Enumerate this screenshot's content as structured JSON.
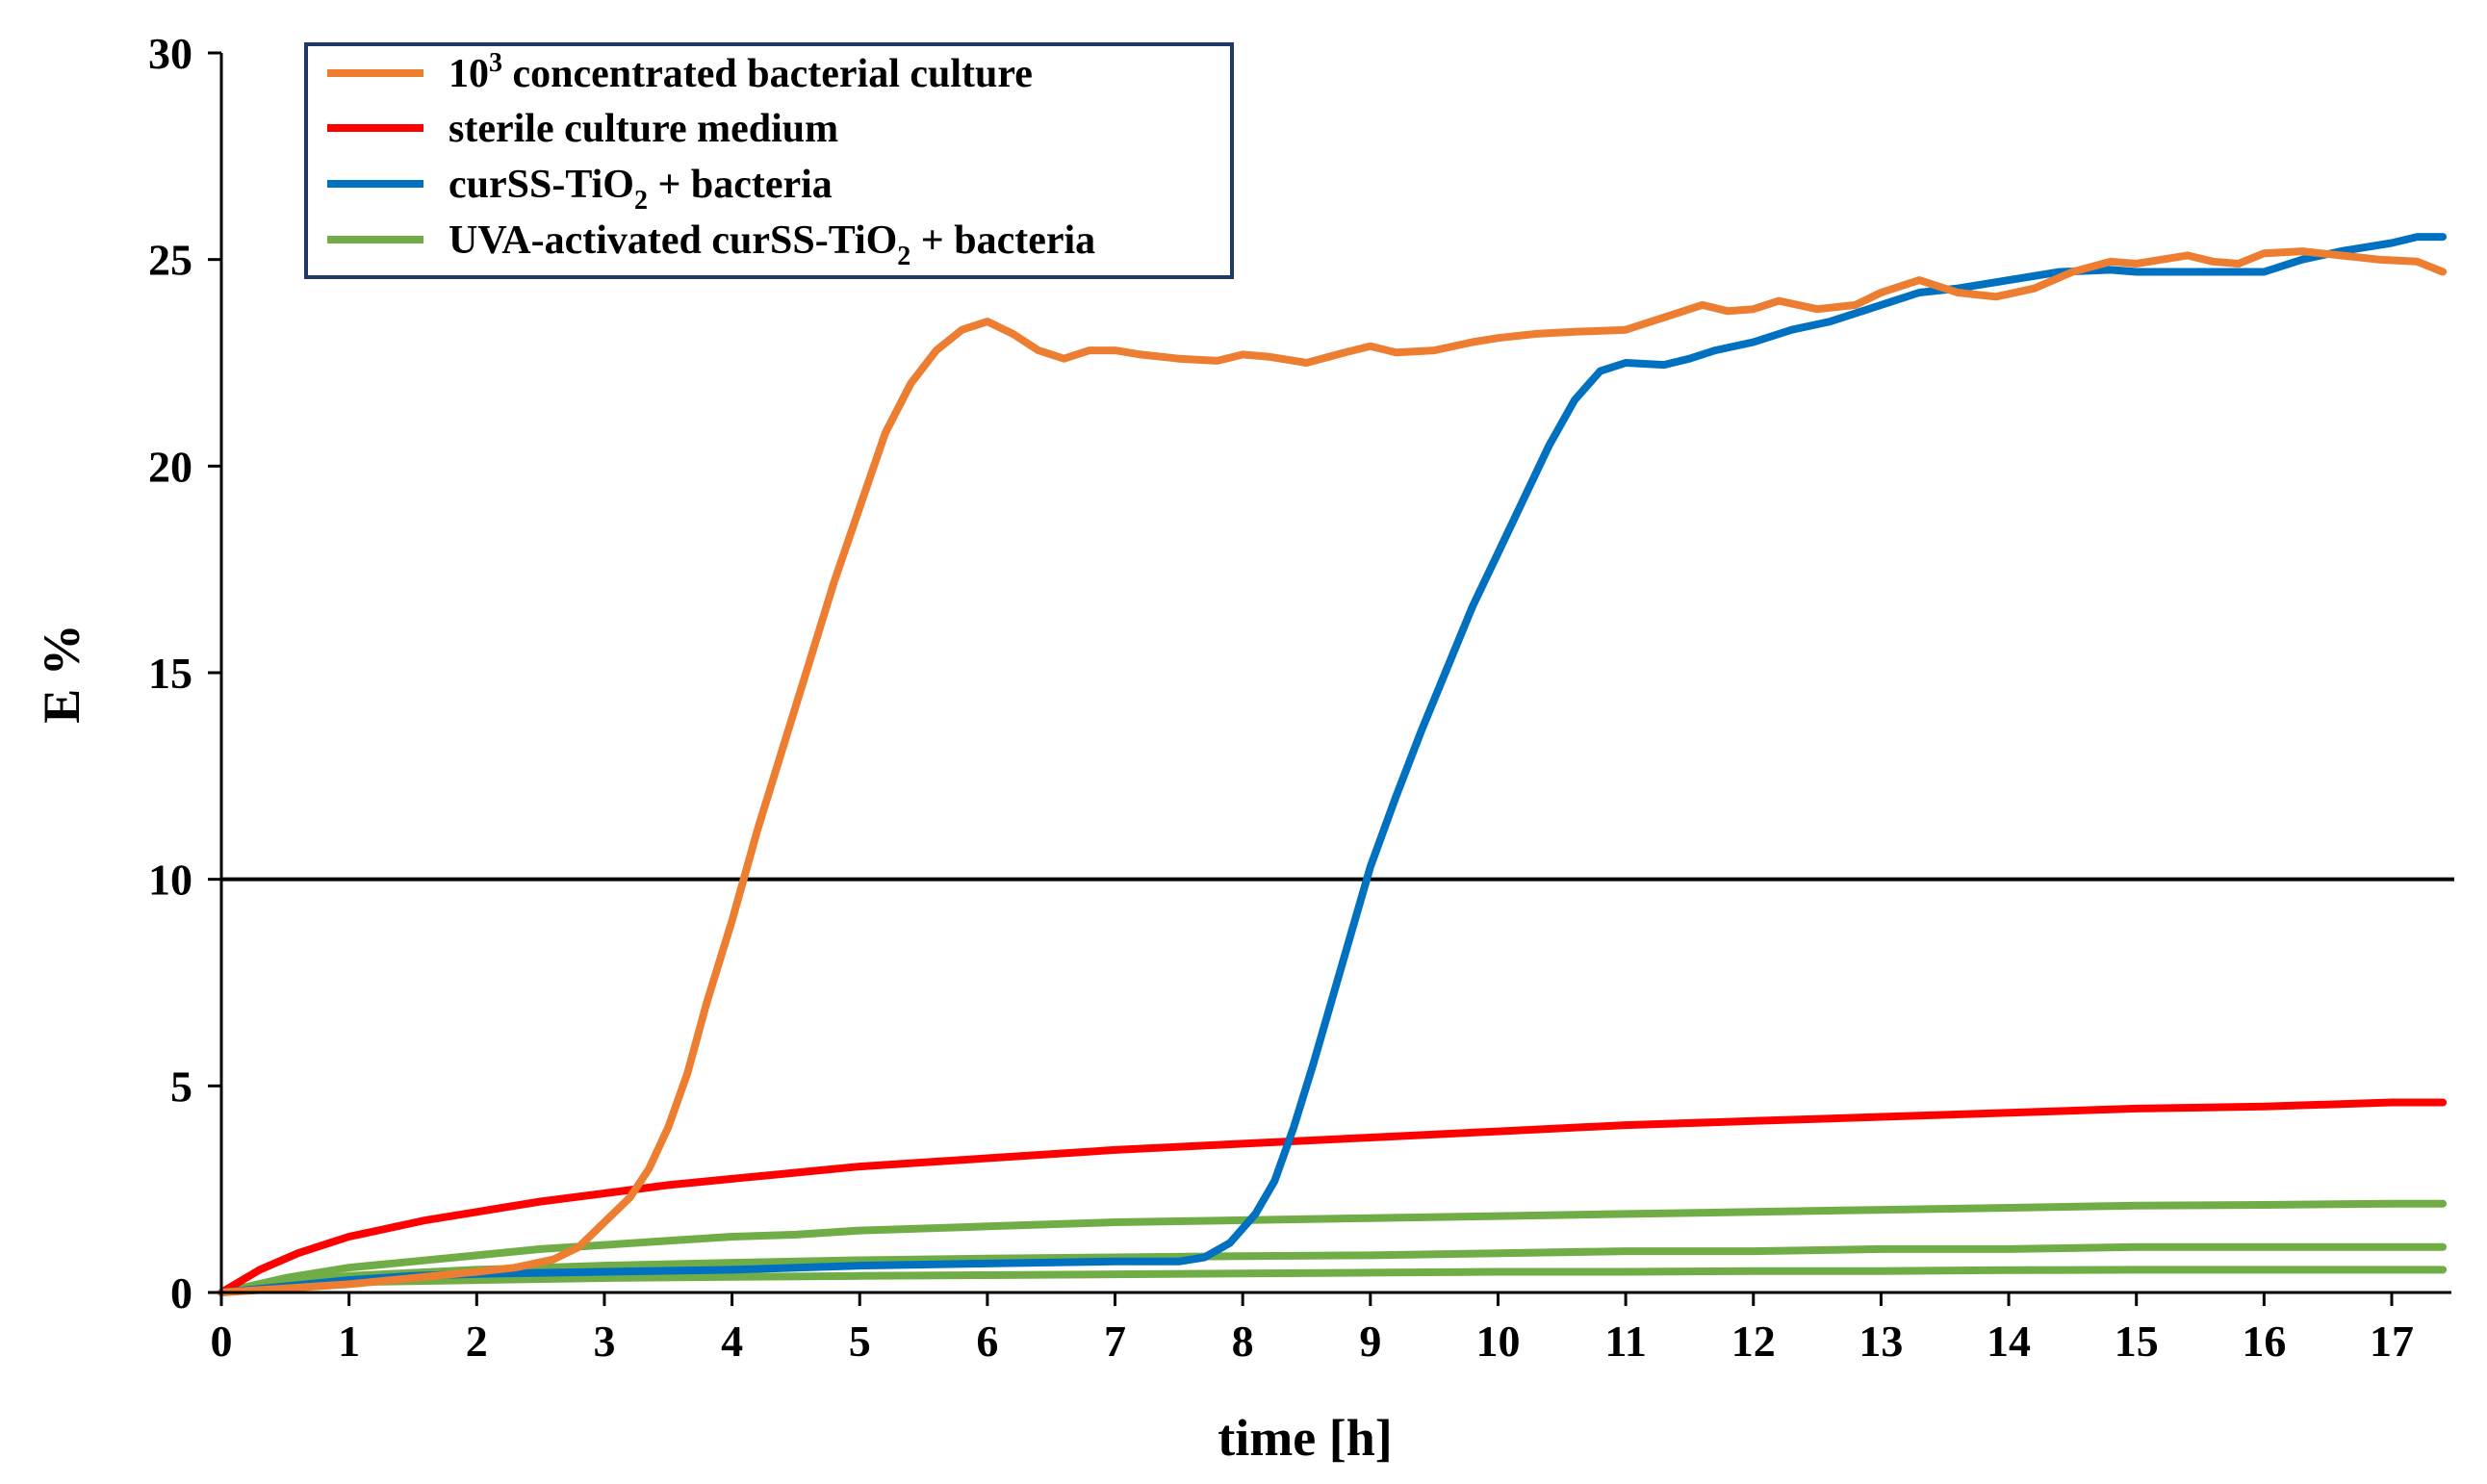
{
  "chart_data": {
    "type": "line",
    "title": "",
    "xlabel": "time [h]",
    "ylabel": "E %",
    "xlim": [
      0,
      17.5
    ],
    "ylim": [
      0,
      30
    ],
    "x_ticks": [
      "0",
      "1",
      "2",
      "3",
      "4",
      "5",
      "6",
      "7",
      "8",
      "9",
      "10",
      "11",
      "12",
      "13",
      "14",
      "15",
      "16",
      "17"
    ],
    "y_ticks": [
      "0",
      "5",
      "10",
      "15",
      "20",
      "25",
      "30"
    ],
    "threshold": {
      "y": 10,
      "color": "#000000"
    },
    "legend_position": "top-left",
    "legend": [
      {
        "series": "culture",
        "label": "10",
        "sup": "3",
        "label_rest": " concentrated bacterial culture"
      },
      {
        "series": "sterile",
        "label": "sterile culture medium"
      },
      {
        "series": "curss",
        "label": "curSS-TiO",
        "sub": "2",
        "label_rest": " + bacteria"
      },
      {
        "series": "uva",
        "label": "UVA-activated curSS-TiO",
        "sub": "2",
        "label_rest": " + bacteria"
      }
    ],
    "series": [
      {
        "id": "culture",
        "name": "10^3 concentrated bacterial culture",
        "color": "#ED7D31",
        "points": [
          [
            0,
            0
          ],
          [
            0.5,
            0.1
          ],
          [
            1,
            0.2
          ],
          [
            1.5,
            0.35
          ],
          [
            2,
            0.5
          ],
          [
            2.3,
            0.6
          ],
          [
            2.6,
            0.8
          ],
          [
            2.8,
            1.1
          ],
          [
            3,
            1.7
          ],
          [
            3.2,
            2.3
          ],
          [
            3.35,
            3
          ],
          [
            3.5,
            4
          ],
          [
            3.65,
            5.3
          ],
          [
            3.8,
            7
          ],
          [
            4,
            9
          ],
          [
            4.2,
            11.2
          ],
          [
            4.4,
            13.2
          ],
          [
            4.6,
            15.2
          ],
          [
            4.8,
            17.2
          ],
          [
            5,
            19
          ],
          [
            5.2,
            20.8
          ],
          [
            5.4,
            22
          ],
          [
            5.6,
            22.8
          ],
          [
            5.8,
            23.3
          ],
          [
            6,
            23.5
          ],
          [
            6.2,
            23.2
          ],
          [
            6.4,
            22.8
          ],
          [
            6.6,
            22.6
          ],
          [
            6.8,
            22.8
          ],
          [
            7,
            22.8
          ],
          [
            7.2,
            22.7
          ],
          [
            7.5,
            22.6
          ],
          [
            7.8,
            22.55
          ],
          [
            8,
            22.7
          ],
          [
            8.2,
            22.65
          ],
          [
            8.5,
            22.5
          ],
          [
            8.8,
            22.75
          ],
          [
            9,
            22.9
          ],
          [
            9.2,
            22.75
          ],
          [
            9.5,
            22.8
          ],
          [
            9.8,
            23
          ],
          [
            10,
            23.1
          ],
          [
            10.3,
            23.2
          ],
          [
            10.6,
            23.25
          ],
          [
            11,
            23.3
          ],
          [
            11.3,
            23.6
          ],
          [
            11.6,
            23.9
          ],
          [
            11.8,
            23.75
          ],
          [
            12,
            23.8
          ],
          [
            12.2,
            24
          ],
          [
            12.5,
            23.8
          ],
          [
            12.8,
            23.9
          ],
          [
            13,
            24.2
          ],
          [
            13.3,
            24.5
          ],
          [
            13.6,
            24.2
          ],
          [
            13.9,
            24.1
          ],
          [
            14.2,
            24.3
          ],
          [
            14.5,
            24.7
          ],
          [
            14.8,
            24.95
          ],
          [
            15,
            24.9
          ],
          [
            15.2,
            25
          ],
          [
            15.4,
            25.1
          ],
          [
            15.6,
            24.95
          ],
          [
            15.8,
            24.9
          ],
          [
            16,
            25.15
          ],
          [
            16.3,
            25.2
          ],
          [
            16.6,
            25.1
          ],
          [
            16.9,
            25
          ],
          [
            17.2,
            24.95
          ],
          [
            17.4,
            24.7
          ]
        ]
      },
      {
        "id": "sterile",
        "name": "sterile culture medium",
        "color": "#FF0000",
        "points": [
          [
            0,
            0
          ],
          [
            0.3,
            0.55
          ],
          [
            0.6,
            0.95
          ],
          [
            0.8,
            1.15
          ],
          [
            1,
            1.35
          ],
          [
            1.3,
            1.55
          ],
          [
            1.6,
            1.75
          ],
          [
            2,
            1.95
          ],
          [
            2.5,
            2.2
          ],
          [
            3,
            2.4
          ],
          [
            3.5,
            2.6
          ],
          [
            4,
            2.75
          ],
          [
            4.5,
            2.9
          ],
          [
            5,
            3.05
          ],
          [
            6,
            3.25
          ],
          [
            7,
            3.45
          ],
          [
            8,
            3.6
          ],
          [
            9,
            3.75
          ],
          [
            10,
            3.9
          ],
          [
            11,
            4.05
          ],
          [
            12,
            4.15
          ],
          [
            13,
            4.25
          ],
          [
            14,
            4.35
          ],
          [
            15,
            4.45
          ],
          [
            16,
            4.5
          ],
          [
            17,
            4.6
          ],
          [
            17.4,
            4.6
          ]
        ]
      },
      {
        "id": "curss",
        "name": "curSS-TiO2 + bacteria",
        "color": "#0070C0",
        "points": [
          [
            0,
            0
          ],
          [
            0.5,
            0.15
          ],
          [
            1,
            0.3
          ],
          [
            1.5,
            0.4
          ],
          [
            2,
            0.45
          ],
          [
            3,
            0.5
          ],
          [
            4,
            0.55
          ],
          [
            5,
            0.65
          ],
          [
            6,
            0.7
          ],
          [
            7,
            0.75
          ],
          [
            7.5,
            0.75
          ],
          [
            7.7,
            0.85
          ],
          [
            7.9,
            1.2
          ],
          [
            8.1,
            1.9
          ],
          [
            8.25,
            2.7
          ],
          [
            8.4,
            4
          ],
          [
            8.55,
            5.5
          ],
          [
            8.7,
            7.1
          ],
          [
            8.85,
            8.7
          ],
          [
            9,
            10.3
          ],
          [
            9.2,
            12
          ],
          [
            9.4,
            13.6
          ],
          [
            9.6,
            15.1
          ],
          [
            9.8,
            16.6
          ],
          [
            10,
            17.9
          ],
          [
            10.2,
            19.2
          ],
          [
            10.4,
            20.5
          ],
          [
            10.6,
            21.6
          ],
          [
            10.8,
            22.3
          ],
          [
            11,
            22.5
          ],
          [
            11.3,
            22.45
          ],
          [
            11.5,
            22.6
          ],
          [
            11.7,
            22.8
          ],
          [
            12,
            23
          ],
          [
            12.3,
            23.3
          ],
          [
            12.6,
            23.5
          ],
          [
            13,
            23.9
          ],
          [
            13.3,
            24.2
          ],
          [
            13.6,
            24.3
          ],
          [
            14,
            24.5
          ],
          [
            14.4,
            24.7
          ],
          [
            14.8,
            24.75
          ],
          [
            15,
            24.7
          ],
          [
            15.4,
            24.7
          ],
          [
            15.7,
            24.7
          ],
          [
            16,
            24.7
          ],
          [
            16.3,
            25
          ],
          [
            16.6,
            25.2
          ],
          [
            17,
            25.4
          ],
          [
            17.2,
            25.55
          ],
          [
            17.4,
            25.55
          ]
        ]
      },
      {
        "id": "uva",
        "name": "UVA-activated curSS-TiO2 + bacteria (upper)",
        "color": "#70AD47",
        "points": [
          [
            0,
            0
          ],
          [
            0.5,
            0.35
          ],
          [
            1,
            0.6
          ],
          [
            1.5,
            0.75
          ],
          [
            2,
            0.9
          ],
          [
            2.5,
            1.05
          ],
          [
            3,
            1.15
          ],
          [
            3.5,
            1.25
          ],
          [
            4,
            1.35
          ],
          [
            4.5,
            1.4
          ],
          [
            5,
            1.5
          ],
          [
            5.5,
            1.55
          ],
          [
            6,
            1.6
          ],
          [
            7,
            1.7
          ],
          [
            8,
            1.75
          ],
          [
            9,
            1.8
          ],
          [
            10,
            1.85
          ],
          [
            11,
            1.9
          ],
          [
            12,
            1.95
          ],
          [
            13,
            2
          ],
          [
            14,
            2.05
          ],
          [
            15,
            2.1
          ],
          [
            16,
            2.12
          ],
          [
            17,
            2.15
          ],
          [
            17.4,
            2.15
          ]
        ]
      },
      {
        "id": "uva2",
        "name": "UVA-activated curSS-TiO2 + bacteria (middle)",
        "color": "#70AD47",
        "points": [
          [
            0,
            0
          ],
          [
            0.5,
            0.25
          ],
          [
            1,
            0.4
          ],
          [
            2,
            0.55
          ],
          [
            3,
            0.65
          ],
          [
            4,
            0.72
          ],
          [
            5,
            0.78
          ],
          [
            6,
            0.82
          ],
          [
            7,
            0.85
          ],
          [
            8,
            0.88
          ],
          [
            9,
            0.9
          ],
          [
            10,
            0.95
          ],
          [
            11,
            1
          ],
          [
            12,
            1
          ],
          [
            13,
            1.05
          ],
          [
            14,
            1.05
          ],
          [
            15,
            1.1
          ],
          [
            16,
            1.1
          ],
          [
            17,
            1.1
          ],
          [
            17.4,
            1.1
          ]
        ]
      },
      {
        "id": "uva3",
        "name": "UVA-activated curSS-TiO2 + bacteria (lower)",
        "color": "#70AD47",
        "points": [
          [
            0,
            0
          ],
          [
            0.5,
            0.15
          ],
          [
            1,
            0.25
          ],
          [
            2,
            0.3
          ],
          [
            3,
            0.35
          ],
          [
            4,
            0.38
          ],
          [
            5,
            0.4
          ],
          [
            6,
            0.42
          ],
          [
            7,
            0.44
          ],
          [
            8,
            0.46
          ],
          [
            9,
            0.48
          ],
          [
            10,
            0.5
          ],
          [
            11,
            0.5
          ],
          [
            12,
            0.52
          ],
          [
            13,
            0.52
          ],
          [
            14,
            0.54
          ],
          [
            15,
            0.55
          ],
          [
            16,
            0.55
          ],
          [
            17,
            0.55
          ],
          [
            17.4,
            0.55
          ]
        ]
      }
    ]
  }
}
